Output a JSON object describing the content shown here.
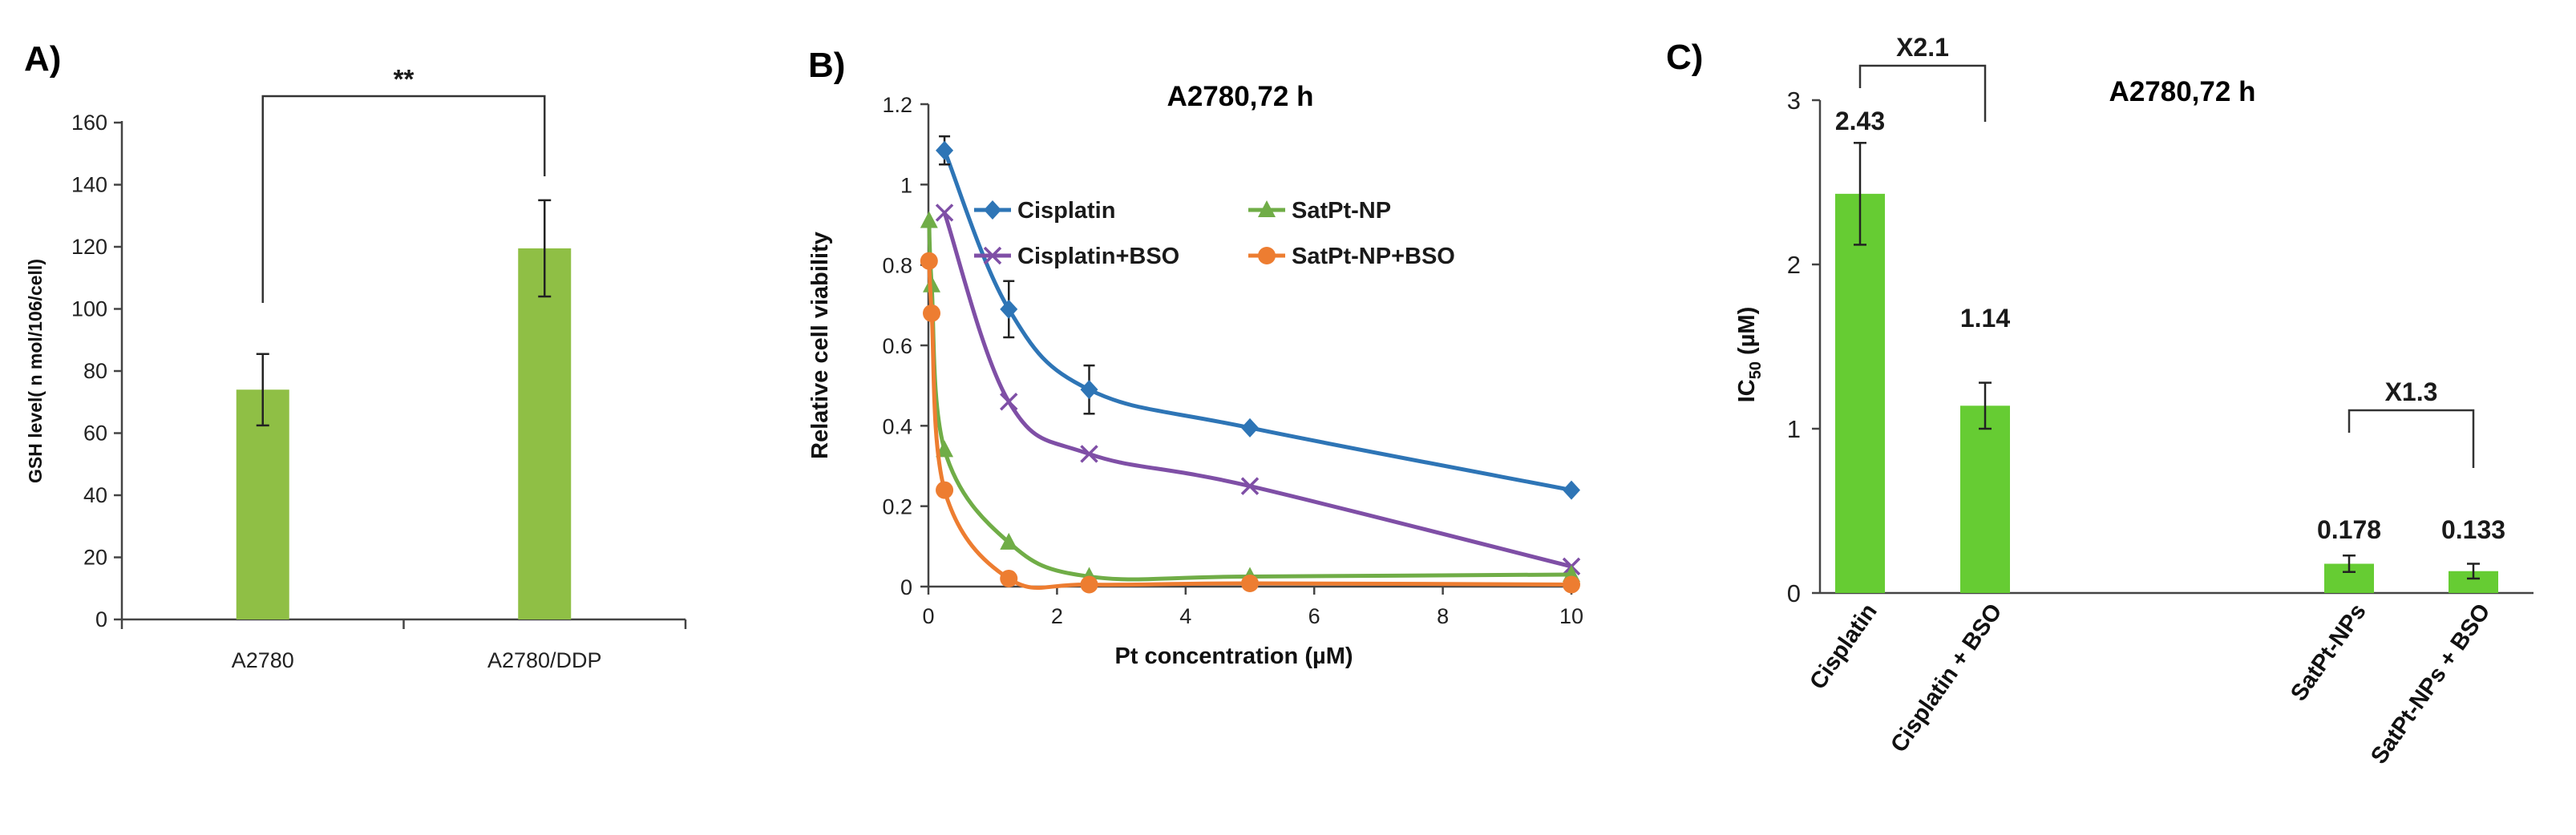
{
  "colors": {
    "barA": "#8fbf45",
    "barC": "#66cc33",
    "cisplatin": "#2e75b6",
    "cisplatin_bso": "#7f4fa6",
    "satpt": "#70ad47",
    "satpt_bso": "#ed7d31"
  },
  "chart_data": [
    {
      "panel_label": "A)",
      "type": "bar",
      "title": "",
      "xlabel": "",
      "ylabel": "GSH level( n mol/106/cell)",
      "ylim": [
        0,
        160
      ],
      "yticks": [
        "0",
        "20",
        "40",
        "60",
        "80",
        "100",
        "120",
        "140",
        "160"
      ],
      "categories": [
        "A2780",
        "A2780/DDP"
      ],
      "values": [
        74,
        119.5
      ],
      "errors": [
        11.5,
        15.5
      ],
      "significance": {
        "label": "**",
        "between": [
          0,
          1
        ]
      }
    },
    {
      "panel_label": "B)",
      "type": "line",
      "title": "A2780,72  h",
      "xlabel": "Pt concentration  (µM)",
      "ylabel": "Relative cell viability",
      "xlim": [
        0,
        10
      ],
      "ylim": [
        0,
        1.2
      ],
      "xticks": [
        "0",
        "2",
        "4",
        "6",
        "8",
        "10"
      ],
      "yticks": [
        "0",
        "0.2",
        "0.4",
        "0.6",
        "0.8",
        "1",
        "1.2"
      ],
      "series": [
        {
          "name": "Cisplatin",
          "marker": "diamond",
          "x": [
            0.25,
            1.25,
            2.5,
            5,
            10
          ],
          "y": [
            1.085,
            0.69,
            0.49,
            0.395,
            0.24
          ],
          "err": [
            0.035,
            0.07,
            0.06,
            0.0,
            0.0
          ]
        },
        {
          "name": "Cisplatin+BSO",
          "marker": "x",
          "x": [
            0.25,
            1.25,
            2.5,
            5,
            10
          ],
          "y": [
            0.93,
            0.46,
            0.33,
            0.25,
            0.05
          ],
          "err": [
            0,
            0,
            0,
            0,
            0
          ]
        },
        {
          "name": "SatPt-NP",
          "marker": "triangle",
          "x": [
            0.01,
            0.05,
            0.25,
            1.25,
            2.5,
            5,
            10
          ],
          "y": [
            0.91,
            0.75,
            0.34,
            0.11,
            0.025,
            0.025,
            0.03
          ],
          "err": [
            0,
            0,
            0,
            0,
            0,
            0,
            0
          ]
        },
        {
          "name": "SatPt-NP+BSO",
          "marker": "circle",
          "x": [
            0.01,
            0.05,
            0.25,
            1.25,
            2.5,
            5,
            10
          ],
          "y": [
            0.81,
            0.68,
            0.24,
            0.02,
            0.005,
            0.008,
            0.005
          ],
          "err": [
            0,
            0,
            0,
            0,
            0,
            0,
            0
          ]
        }
      ]
    },
    {
      "panel_label": "C)",
      "type": "bar",
      "title": "A2780,72  h",
      "xlabel": "",
      "ylabel": "IC50 (µM)",
      "ylabel_main": "IC",
      "ylabel_sub": "50",
      "ylabel_unit": " (µM)",
      "ylim": [
        0,
        3
      ],
      "yticks": [
        "0",
        "1",
        "2",
        "3"
      ],
      "categories": [
        "Cisplatin",
        "Cisplatin + BSO",
        "SatPt-NPs",
        "SatPt-NPs + BSO"
      ],
      "values": [
        2.43,
        1.14,
        0.178,
        0.133
      ],
      "value_labels": [
        "2.43",
        "1.14",
        "0.178",
        "0.133"
      ],
      "errors": [
        0.31,
        0.14,
        0.05,
        0.045
      ],
      "comparisons": [
        {
          "label": "X2.1",
          "between": [
            0,
            1
          ]
        },
        {
          "label": "X1.3",
          "between": [
            2,
            3
          ]
        }
      ]
    }
  ]
}
